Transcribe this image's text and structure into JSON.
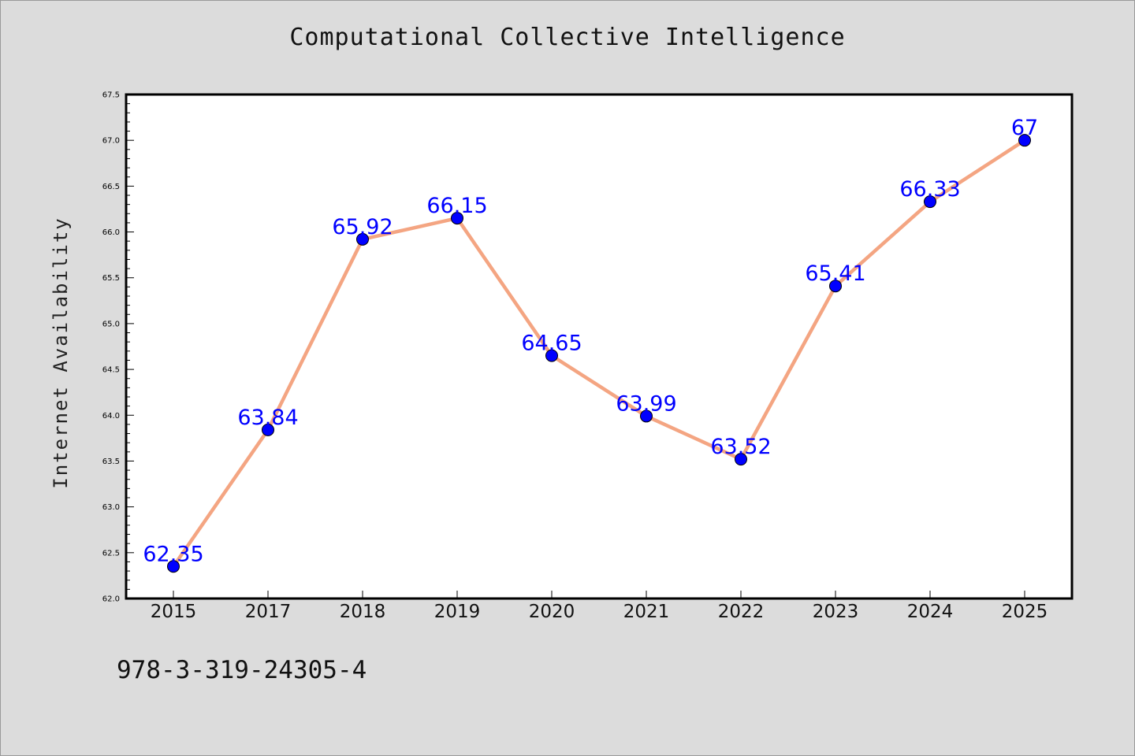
{
  "chart_data": {
    "type": "line",
    "title": "Computational Collective Intelligence",
    "xlabel": "",
    "ylabel": "Internet Availability",
    "categories": [
      "2015",
      "2017",
      "2018",
      "2019",
      "2020",
      "2021",
      "2022",
      "2023",
      "2024",
      "2025"
    ],
    "series": [
      {
        "values": [
          62.35,
          63.84,
          65.92,
          66.15,
          64.65,
          63.99,
          63.52,
          65.41,
          66.33,
          67
        ],
        "data_labels": [
          "62.35",
          "63.84",
          "65.92",
          "66.15",
          "64.65",
          "63.99",
          "63.52",
          "65.41",
          "66.33",
          "67"
        ],
        "line_color": "#f4a582",
        "marker_color": "#0000ff"
      }
    ],
    "ylim": [
      62.0,
      67.5
    ],
    "y_ticks": [
      "62.0",
      "62.5",
      "63.0",
      "63.5",
      "64.0",
      "64.5",
      "65.0",
      "65.5",
      "66.0",
      "66.5",
      "67.0",
      "67.5"
    ],
    "grid": false,
    "legend": "none",
    "plot_background": "#ffffff",
    "figure_background": "#dcdcdc",
    "label_color": "#0000ff"
  },
  "footer": {
    "isbn": "978-3-319-24305-4"
  }
}
